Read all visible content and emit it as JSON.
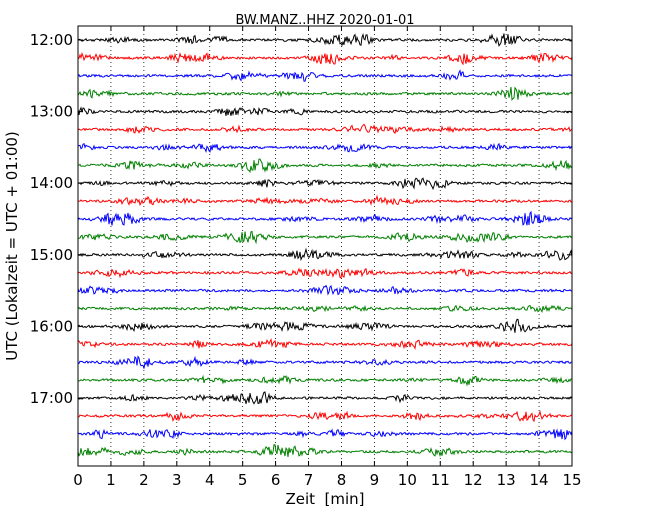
{
  "chart_data": {
    "type": "line",
    "title": "BW.MANZ..HHZ 2020-01-01",
    "xlabel": "Zeit  [min]",
    "ylabel": "UTC (Lokalzeit = UTC + 01:00)",
    "xlim": [
      0,
      15
    ],
    "x_ticks": [
      0,
      1,
      2,
      3,
      4,
      5,
      6,
      7,
      8,
      9,
      10,
      11,
      12,
      13,
      14,
      15
    ],
    "y_tick_labels": [
      "12:00",
      "13:00",
      "14:00",
      "15:00",
      "16:00",
      "17:00"
    ],
    "grid": "vertical dotted lines at each minute",
    "trace_interval_minutes": 15,
    "colors_cycle": [
      "#000000",
      "#ff0000",
      "#0000ff",
      "#008000"
    ],
    "series": [
      {
        "start": "12:00",
        "color": "#000000"
      },
      {
        "start": "12:15",
        "color": "#ff0000"
      },
      {
        "start": "12:30",
        "color": "#0000ff"
      },
      {
        "start": "12:45",
        "color": "#008000"
      },
      {
        "start": "13:00",
        "color": "#000000"
      },
      {
        "start": "13:15",
        "color": "#ff0000"
      },
      {
        "start": "13:30",
        "color": "#0000ff"
      },
      {
        "start": "13:45",
        "color": "#008000"
      },
      {
        "start": "14:00",
        "color": "#000000"
      },
      {
        "start": "14:15",
        "color": "#ff0000"
      },
      {
        "start": "14:30",
        "color": "#0000ff"
      },
      {
        "start": "14:45",
        "color": "#008000"
      },
      {
        "start": "15:00",
        "color": "#000000"
      },
      {
        "start": "15:15",
        "color": "#ff0000"
      },
      {
        "start": "15:30",
        "color": "#0000ff"
      },
      {
        "start": "15:45",
        "color": "#008000"
      },
      {
        "start": "16:00",
        "color": "#000000"
      },
      {
        "start": "16:15",
        "color": "#ff0000"
      },
      {
        "start": "16:30",
        "color": "#0000ff"
      },
      {
        "start": "16:45",
        "color": "#008000"
      },
      {
        "start": "17:00",
        "color": "#000000"
      },
      {
        "start": "17:15",
        "color": "#ff0000"
      },
      {
        "start": "17:30",
        "color": "#0000ff"
      },
      {
        "start": "17:45",
        "color": "#008000"
      }
    ]
  }
}
